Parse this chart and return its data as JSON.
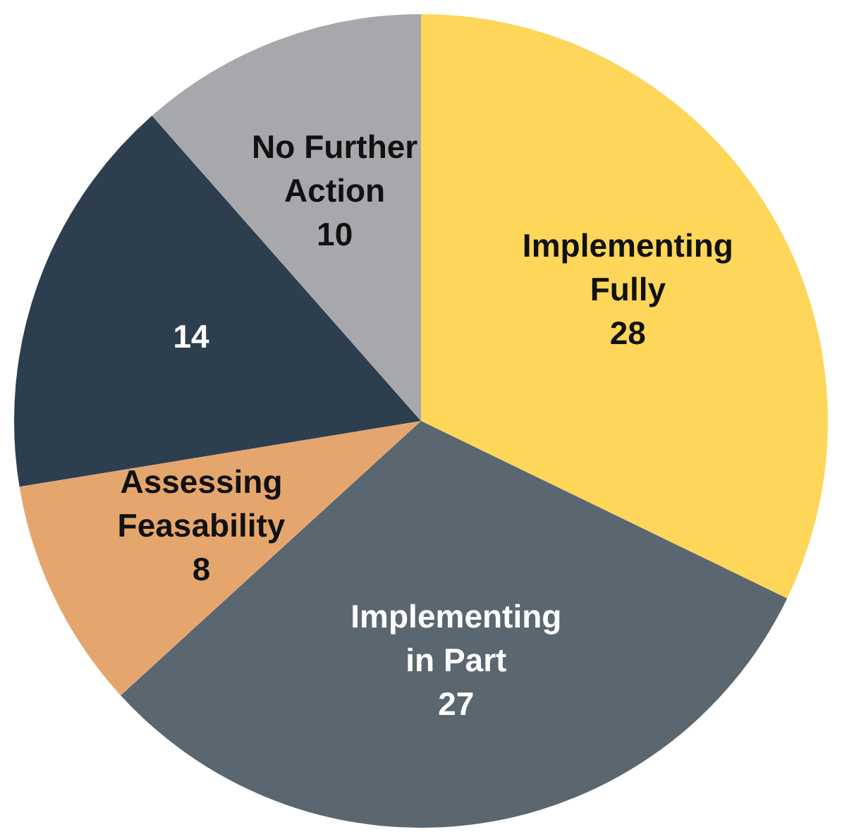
{
  "chart_data": {
    "type": "pie",
    "categories": [
      "Implementing Fully",
      "Implementing in Part",
      "Assessing Feasability",
      null,
      "No Further Action"
    ],
    "values": [
      28,
      27,
      8,
      14,
      10
    ],
    "colors": [
      "#fdd65a",
      "#5a6670",
      "#e5a66e",
      "#2d3e4e",
      "#a6a8ab"
    ],
    "data_labels": true,
    "legend": false
  }
}
